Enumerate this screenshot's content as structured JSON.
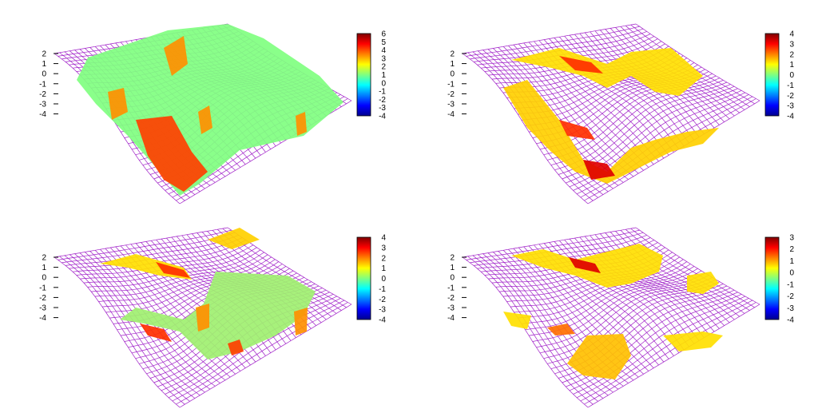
{
  "colors": {
    "mesh": "#a020c8",
    "colormap": [
      "#00008f",
      "#0000ff",
      "#0080ff",
      "#00ffff",
      "#80ff80",
      "#ffff00",
      "#ff8000",
      "#ff0000",
      "#800000"
    ]
  },
  "chart_data": [
    {
      "type": "surface",
      "zticks": [
        "2",
        "1",
        "0",
        "-1",
        "-2",
        "-3",
        "-4"
      ],
      "colorbar_range": [
        -4,
        6
      ],
      "colorbar_ticks": [
        "6",
        "5",
        "4",
        "3",
        "2",
        "1",
        "0",
        "-1",
        "-2",
        "-3",
        "-4"
      ]
    },
    {
      "type": "surface",
      "zticks": [
        "2",
        "1",
        "0",
        "-1",
        "-2",
        "-3",
        "-4"
      ],
      "colorbar_range": [
        -4,
        4
      ],
      "colorbar_ticks": [
        "4",
        "3",
        "2",
        "1",
        "0",
        "-1",
        "-2",
        "-3",
        "-4"
      ]
    },
    {
      "type": "surface",
      "zticks": [
        "2",
        "1",
        "0",
        "-1",
        "-2",
        "-3",
        "-4"
      ],
      "colorbar_range": [
        -4,
        4
      ],
      "colorbar_ticks": [
        "4",
        "3",
        "2",
        "1",
        "0",
        "-1",
        "-2",
        "-3",
        "-4"
      ]
    },
    {
      "type": "surface",
      "zticks": [
        "2",
        "1",
        "0",
        "-1",
        "-2",
        "-3",
        "-4"
      ],
      "colorbar_range": [
        -4,
        3
      ],
      "colorbar_ticks": [
        "3",
        "2",
        "1",
        "0",
        "-1",
        "-2",
        "-3",
        "-4"
      ]
    }
  ]
}
